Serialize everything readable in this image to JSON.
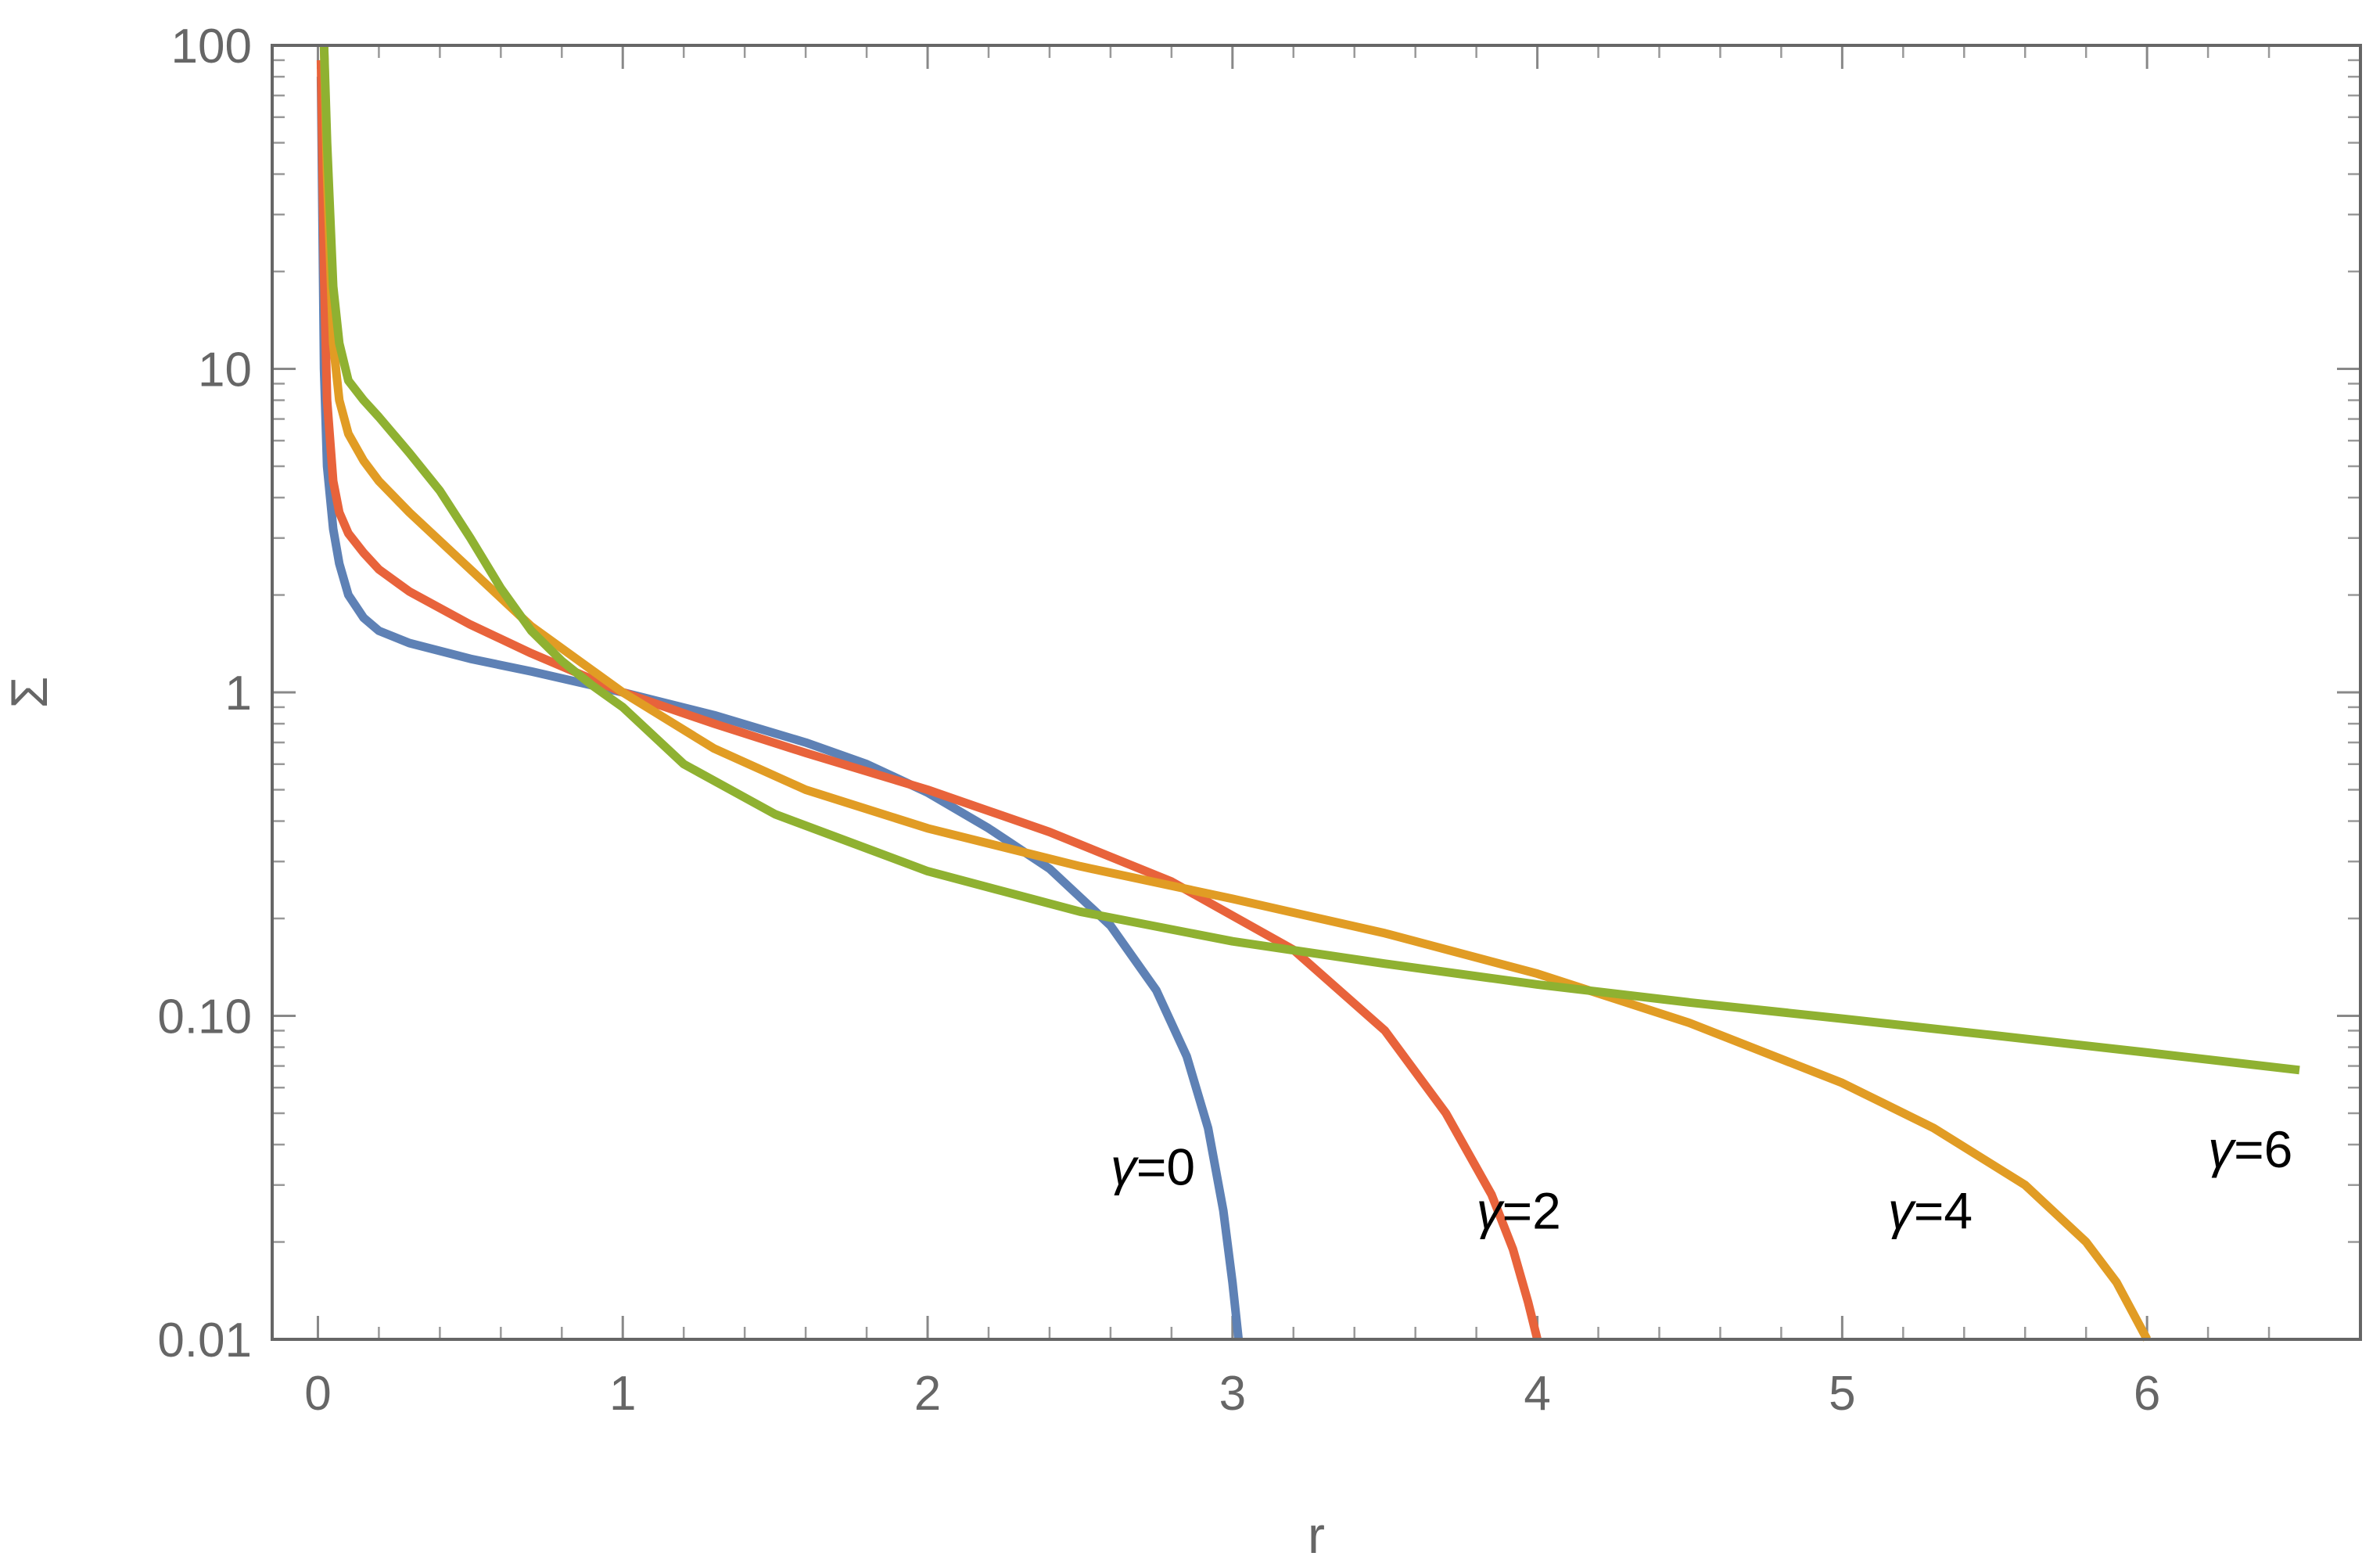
{
  "chart_data": {
    "type": "line",
    "title": "",
    "xlabel": "r",
    "ylabel": "Σ",
    "xlim": [
      -0.15,
      6.7
    ],
    "ylim": [
      0.01,
      100
    ],
    "yscale": "log",
    "grid": false,
    "x_ticks": [
      0,
      1,
      2,
      3,
      4,
      5,
      6
    ],
    "x_tick_labels": [
      "0",
      "1",
      "2",
      "3",
      "4",
      "5",
      "6"
    ],
    "y_ticks": [
      0.01,
      0.1,
      1,
      10,
      100
    ],
    "y_tick_labels": [
      "0.01",
      "0.10",
      "1",
      "10",
      "100"
    ],
    "series": [
      {
        "color": "#5E81B5",
        "x": [
          0.01,
          0.02,
          0.03,
          0.05,
          0.07,
          0.1,
          0.15,
          0.2,
          0.3,
          0.5,
          0.7,
          1.0,
          1.3,
          1.6,
          1.8,
          2.0,
          2.2,
          2.4,
          2.6,
          2.75,
          2.85,
          2.92,
          2.97,
          3.0,
          3.02
        ],
        "y": [
          80,
          10,
          5,
          3.2,
          2.5,
          2.0,
          1.7,
          1.55,
          1.42,
          1.27,
          1.16,
          1.0,
          0.85,
          0.7,
          0.6,
          0.49,
          0.38,
          0.285,
          0.19,
          0.12,
          0.075,
          0.045,
          0.025,
          0.015,
          0.01
        ]
      },
      {
        "color": "#E8633B",
        "x": [
          0.01,
          0.02,
          0.03,
          0.05,
          0.07,
          0.1,
          0.15,
          0.2,
          0.3,
          0.5,
          0.7,
          1.0,
          1.3,
          1.6,
          2.0,
          2.4,
          2.8,
          3.2,
          3.5,
          3.7,
          3.85,
          3.92,
          3.97,
          4.0
        ],
        "y": [
          90,
          20,
          8,
          4.5,
          3.6,
          3.1,
          2.7,
          2.4,
          2.05,
          1.62,
          1.32,
          1.0,
          0.8,
          0.65,
          0.5,
          0.37,
          0.26,
          0.16,
          0.09,
          0.05,
          0.028,
          0.019,
          0.013,
          0.01
        ]
      },
      {
        "color": "#E19C24",
        "x": [
          0.02,
          0.03,
          0.05,
          0.07,
          0.1,
          0.15,
          0.2,
          0.3,
          0.5,
          0.7,
          1.0,
          1.3,
          1.6,
          2.0,
          2.5,
          3.0,
          3.5,
          4.0,
          4.5,
          5.0,
          5.3,
          5.6,
          5.8,
          5.9,
          6.0
        ],
        "y": [
          100,
          40,
          12,
          8,
          6.3,
          5.2,
          4.5,
          3.6,
          2.4,
          1.6,
          1.0,
          0.67,
          0.5,
          0.38,
          0.29,
          0.23,
          0.18,
          0.135,
          0.095,
          0.062,
          0.045,
          0.03,
          0.02,
          0.015,
          0.01
        ]
      },
      {
        "color": "#8FB131",
        "x": [
          0.02,
          0.03,
          0.05,
          0.07,
          0.1,
          0.15,
          0.2,
          0.3,
          0.4,
          0.5,
          0.6,
          0.7,
          0.8,
          0.9,
          1.0,
          1.2,
          1.5,
          2.0,
          2.5,
          3.0,
          3.5,
          4.0,
          4.5,
          5.0,
          5.5,
          6.0,
          6.5
        ],
        "y": [
          100,
          50,
          18,
          12,
          9.2,
          8.0,
          7.1,
          5.5,
          4.2,
          3.0,
          2.1,
          1.55,
          1.25,
          1.05,
          0.9,
          0.6,
          0.42,
          0.28,
          0.21,
          0.17,
          0.145,
          0.125,
          0.11,
          0.098,
          0.087,
          0.077,
          0.068
        ]
      }
    ],
    "annotations": [
      {
        "text": "γ=0",
        "x": 2.6,
        "y": 0.03
      },
      {
        "text": "γ=2",
        "x": 3.8,
        "y": 0.022
      },
      {
        "text": "γ=4",
        "x": 5.15,
        "y": 0.022
      },
      {
        "text": "γ=6",
        "x": 6.2,
        "y": 0.034
      }
    ]
  }
}
